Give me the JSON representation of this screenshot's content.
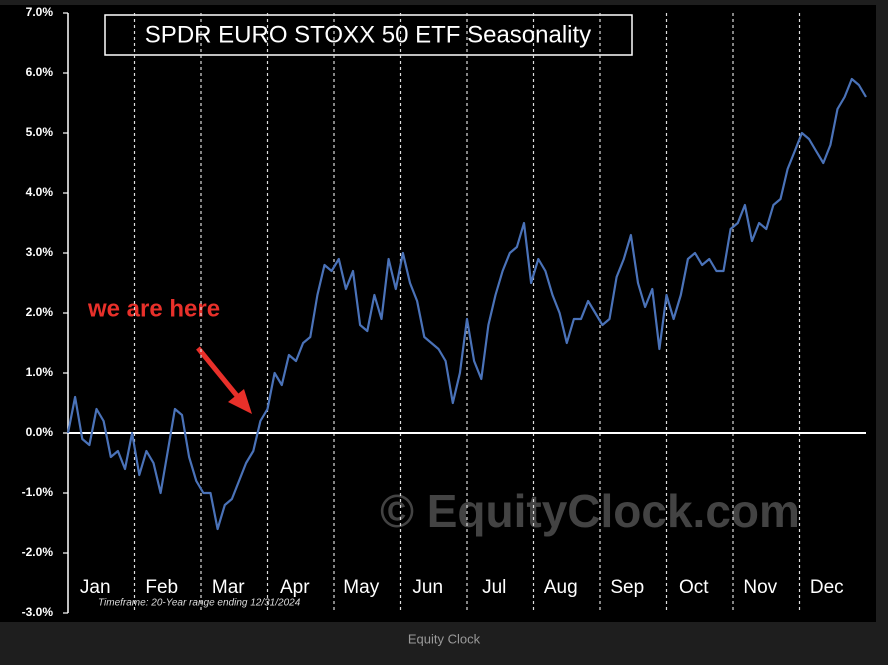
{
  "chart_data": {
    "type": "line",
    "title": "SPDR EURO STOXX 50 ETF Seasonality",
    "annotation": "we are here",
    "watermark": "© EquityClock.com",
    "footnote": "Timeframe: 20-Year range ending 12/31/2024",
    "caption": "Equity Clock",
    "month_labels": [
      "Jan",
      "Feb",
      "Mar",
      "Apr",
      "May",
      "Jun",
      "Jul",
      "Aug",
      "Sep",
      "Oct",
      "Nov",
      "Dec"
    ],
    "ylim": [
      -3,
      7
    ],
    "yticks": [
      {
        "value": 7,
        "label": "7.0%"
      },
      {
        "value": 6,
        "label": "6.0%"
      },
      {
        "value": 5,
        "label": "5.0%"
      },
      {
        "value": 4,
        "label": "4.0%"
      },
      {
        "value": 3,
        "label": "3.0%"
      },
      {
        "value": 2,
        "label": "2.0%"
      },
      {
        "value": 1,
        "label": "1.0%"
      },
      {
        "value": 0,
        "label": "0.0%"
      },
      {
        "value": -1,
        "label": "-1.0%"
      },
      {
        "value": -2,
        "label": "-2.0%"
      },
      {
        "value": -3,
        "label": "-3.0%"
      }
    ],
    "series": [
      {
        "color": "#4a72b8",
        "values": [
          0,
          0.6,
          -0.1,
          -0.2,
          0.4,
          0.2,
          -0.4,
          -0.3,
          -0.6,
          0.0,
          -0.7,
          -0.3,
          -0.5,
          -1.0,
          -0.3,
          0.4,
          0.3,
          -0.4,
          -0.8,
          -1.0,
          -1.0,
          -1.6,
          -1.2,
          -1.1,
          -0.8,
          -0.5,
          -0.3,
          0.2,
          0.4,
          1.0,
          0.8,
          1.3,
          1.2,
          1.5,
          1.6,
          2.3,
          2.8,
          2.7,
          2.9,
          2.4,
          2.7,
          1.8,
          1.7,
          2.3,
          1.9,
          2.9,
          2.4,
          3.0,
          2.5,
          2.2,
          1.6,
          1.5,
          1.4,
          1.2,
          0.5,
          1.0,
          1.9,
          1.2,
          0.9,
          1.8,
          2.3,
          2.7,
          3.0,
          3.1,
          3.5,
          2.5,
          2.9,
          2.7,
          2.3,
          2.0,
          1.5,
          1.9,
          1.9,
          2.2,
          2.0,
          1.8,
          1.9,
          2.6,
          2.9,
          3.3,
          2.5,
          2.1,
          2.4,
          1.4,
          2.3,
          1.9,
          2.3,
          2.9,
          3.0,
          2.8,
          2.9,
          2.7,
          2.7,
          3.4,
          3.5,
          3.8,
          3.2,
          3.5,
          3.4,
          3.8,
          3.9,
          4.4,
          4.7,
          5.0,
          4.9,
          4.7,
          4.5,
          4.8,
          5.4,
          5.6,
          5.9,
          5.8,
          5.6
        ]
      }
    ]
  }
}
